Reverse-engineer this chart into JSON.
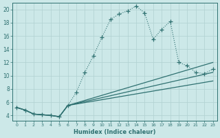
{
  "xlabel": "Humidex (Indice chaleur)",
  "bg_color": "#cce8e8",
  "grid_color": "#b0d0d0",
  "line_color": "#2e7070",
  "xlim": [
    -0.5,
    23.5
  ],
  "ylim": [
    3.2,
    21.0
  ],
  "xticks": [
    0,
    1,
    2,
    3,
    4,
    5,
    6,
    7,
    8,
    9,
    10,
    11,
    12,
    13,
    14,
    15,
    16,
    17,
    18,
    19,
    20,
    21,
    22,
    23
  ],
  "yticks": [
    4,
    6,
    8,
    10,
    12,
    14,
    16,
    18,
    20
  ],
  "curve_main_x": [
    0,
    1,
    2,
    3,
    4,
    5,
    6,
    7,
    8,
    9,
    10,
    11,
    12,
    13,
    14,
    15,
    16,
    17,
    18,
    19,
    20,
    21,
    22,
    23
  ],
  "curve_main_y": [
    5.2,
    4.8,
    4.2,
    4.1,
    4.0,
    3.8,
    5.5,
    7.5,
    10.5,
    13.0,
    15.8,
    18.5,
    19.3,
    19.8,
    20.5,
    19.5,
    15.5,
    17.0,
    18.2,
    12.0,
    11.5,
    10.5,
    10.3,
    11.0
  ],
  "line1_x": [
    0,
    1,
    2,
    3,
    4,
    5,
    6,
    23
  ],
  "line1_y": [
    5.2,
    4.8,
    4.2,
    4.1,
    4.0,
    3.8,
    5.5,
    12.0
  ],
  "line2_x": [
    0,
    1,
    2,
    3,
    4,
    5,
    6,
    23
  ],
  "line2_y": [
    5.2,
    4.8,
    4.2,
    4.1,
    4.0,
    3.8,
    5.5,
    10.5
  ],
  "line3_x": [
    0,
    1,
    2,
    3,
    4,
    5,
    6,
    23
  ],
  "line3_y": [
    5.2,
    4.8,
    4.2,
    4.1,
    4.0,
    3.8,
    5.5,
    9.2
  ]
}
